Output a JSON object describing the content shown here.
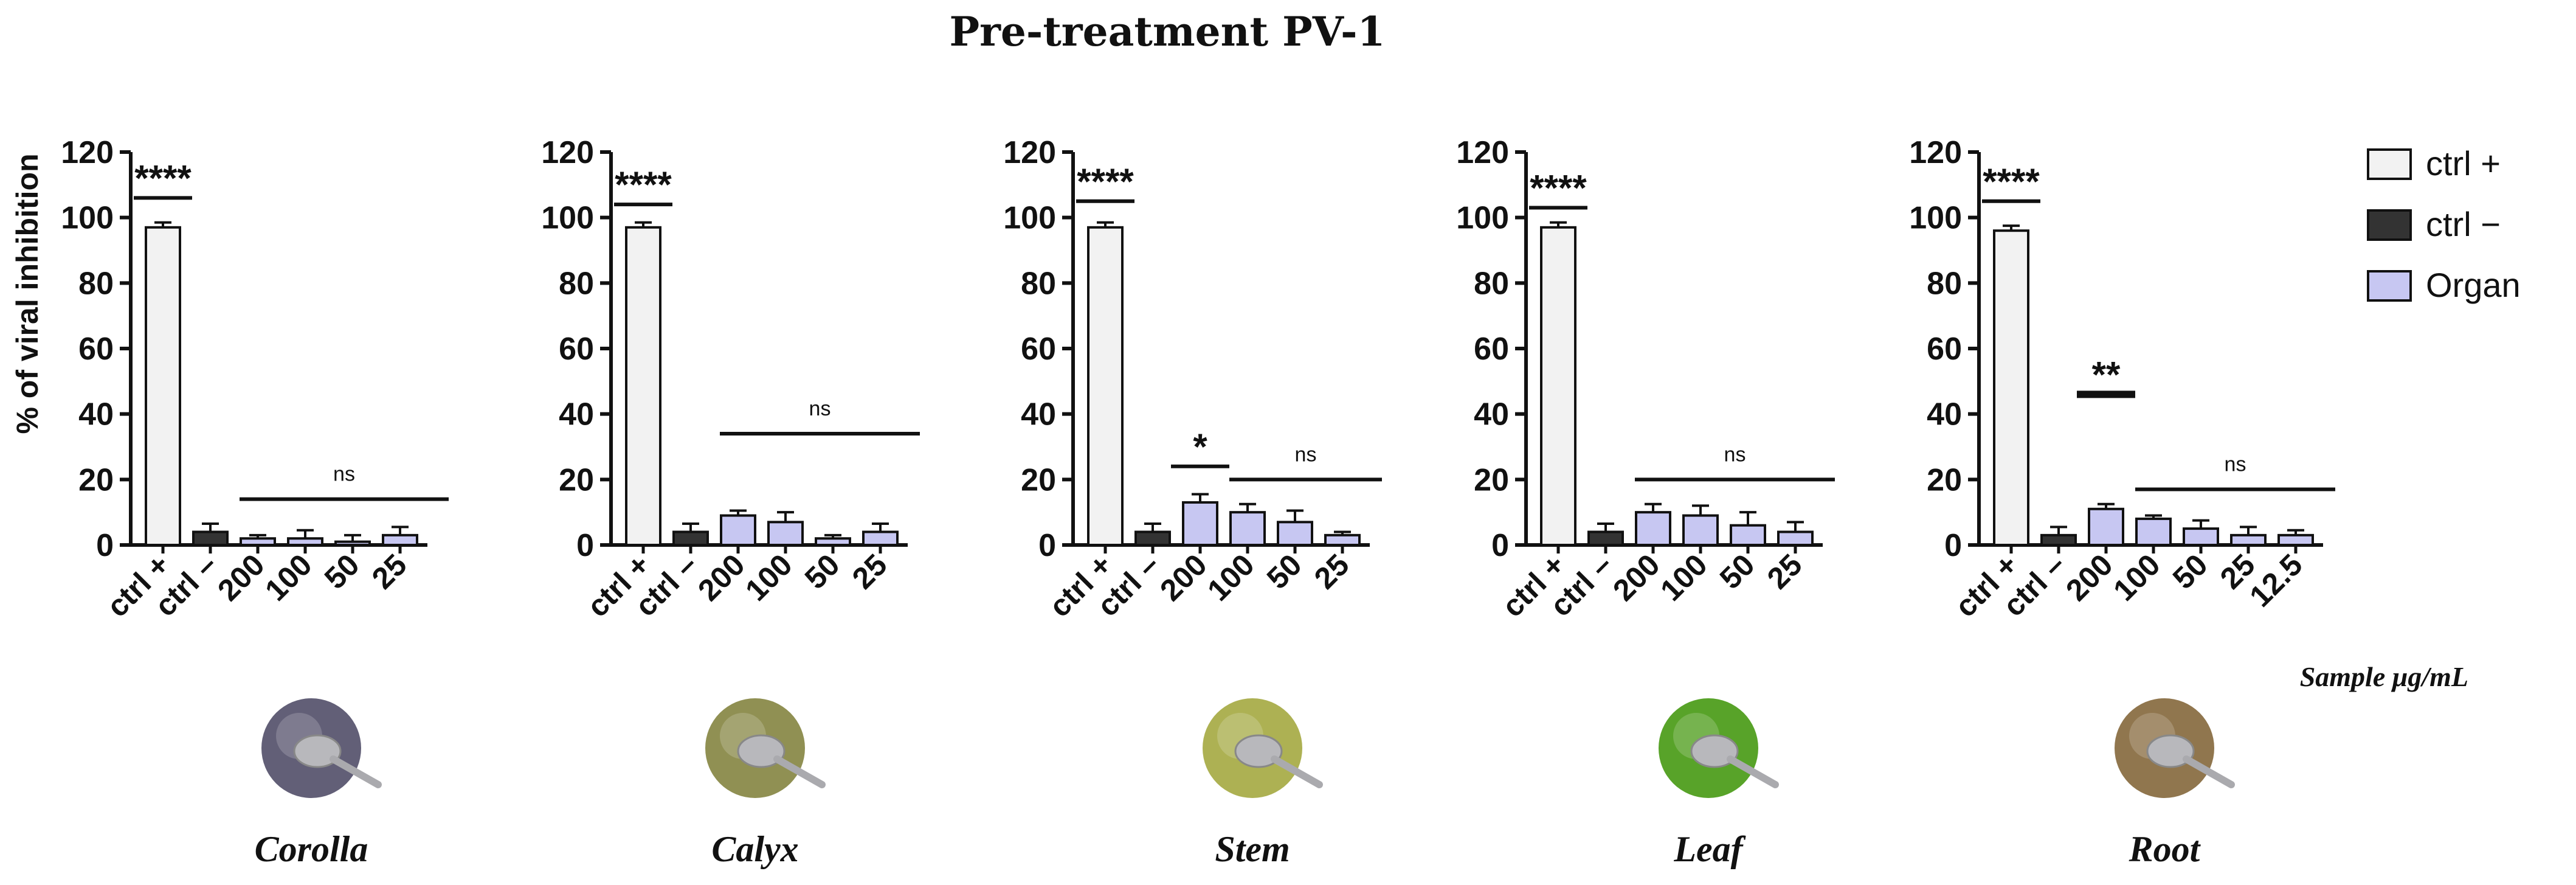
{
  "figure": {
    "title": "Pre-treatment PV-1",
    "ylabel": "% of viral inhibition",
    "xlabel": "Sample μg/mL",
    "legend": [
      {
        "label": "ctrl +",
        "color": "#f2f2f2"
      },
      {
        "label": "ctrl −",
        "color": "#333333"
      },
      {
        "label": "Organ",
        "color": "#c7c7f2"
      }
    ]
  },
  "chart_data": [
    {
      "type": "bar",
      "organ": "Corolla",
      "organ_color": "#5a5670",
      "categories": [
        "ctrl +",
        "ctrl –",
        "200",
        "100",
        "50",
        "25"
      ],
      "values": [
        97,
        4,
        2,
        2,
        1,
        3
      ],
      "errors": [
        1.5,
        2.5,
        1,
        2.5,
        2,
        2.5
      ],
      "kinds": [
        "pos",
        "neg",
        "organ",
        "organ",
        "organ",
        "organ"
      ],
      "ylim": [
        0,
        120
      ],
      "yticks": [
        "0",
        "20",
        "40",
        "60",
        "80",
        "100",
        "120"
      ],
      "annotations": [
        {
          "text": "****",
          "from": 0,
          "to": 0,
          "y": 106
        },
        {
          "text": "ns",
          "from": 2,
          "to": 5,
          "y": 14
        }
      ]
    },
    {
      "type": "bar",
      "organ": "Calyx",
      "organ_color": "#8a8a4a",
      "categories": [
        "ctrl +",
        "ctrl –",
        "200",
        "100",
        "50",
        "25"
      ],
      "values": [
        97,
        4,
        9,
        7,
        2,
        4
      ],
      "errors": [
        1.5,
        2.5,
        1.5,
        3,
        1,
        2.5
      ],
      "kinds": [
        "pos",
        "neg",
        "organ",
        "organ",
        "organ",
        "organ"
      ],
      "ylim": [
        0,
        120
      ],
      "yticks": [
        "0",
        "20",
        "40",
        "60",
        "80",
        "100",
        "120"
      ],
      "annotations": [
        {
          "text": "****",
          "from": 0,
          "to": 0,
          "y": 104
        },
        {
          "text": "ns",
          "from": 2,
          "to": 5,
          "y": 34
        }
      ]
    },
    {
      "type": "bar",
      "organ": "Stem",
      "organ_color": "#a9ad4a",
      "categories": [
        "ctrl +",
        "ctrl –",
        "200",
        "100",
        "50",
        "25"
      ],
      "values": [
        97,
        4,
        13,
        10,
        7,
        3
      ],
      "errors": [
        1.5,
        2.5,
        2.5,
        2.5,
        3.5,
        1
      ],
      "kinds": [
        "pos",
        "neg",
        "organ",
        "organ",
        "organ",
        "organ"
      ],
      "ylim": [
        0,
        120
      ],
      "yticks": [
        "0",
        "20",
        "40",
        "60",
        "80",
        "100",
        "120"
      ],
      "annotations": [
        {
          "text": "****",
          "from": 0,
          "to": 0,
          "y": 105
        },
        {
          "text": "*",
          "from": 2,
          "to": 2,
          "y": 24
        },
        {
          "text": "ns",
          "from": 3,
          "to": 5,
          "y": 20
        }
      ]
    },
    {
      "type": "bar",
      "organ": "Leaf",
      "organ_color": "#4f9e1e",
      "categories": [
        "ctrl +",
        "ctrl –",
        "200",
        "100",
        "50",
        "25"
      ],
      "values": [
        97,
        4,
        10,
        9,
        6,
        4
      ],
      "errors": [
        1.5,
        2.5,
        2.5,
        3,
        4,
        3
      ],
      "kinds": [
        "pos",
        "neg",
        "organ",
        "organ",
        "organ",
        "organ"
      ],
      "ylim": [
        0,
        120
      ],
      "yticks": [
        "0",
        "20",
        "40",
        "60",
        "80",
        "100",
        "120"
      ],
      "annotations": [
        {
          "text": "****",
          "from": 0,
          "to": 0,
          "y": 103
        },
        {
          "text": "ns",
          "from": 2,
          "to": 5,
          "y": 20
        }
      ]
    },
    {
      "type": "bar",
      "organ": "Root",
      "organ_color": "#8a6f45",
      "categories": [
        "ctrl +",
        "ctrl –",
        "200",
        "100",
        "50",
        "25",
        "12.5"
      ],
      "values": [
        96,
        3,
        11,
        8,
        5,
        3,
        3
      ],
      "errors": [
        1.5,
        2.5,
        1.5,
        1,
        2.5,
        2.5,
        1.5
      ],
      "kinds": [
        "pos",
        "neg",
        "organ",
        "organ",
        "organ",
        "organ",
        "organ"
      ],
      "ylim": [
        0,
        120
      ],
      "yticks": [
        "0",
        "20",
        "40",
        "60",
        "80",
        "100",
        "120"
      ],
      "annotations": [
        {
          "text": "****",
          "from": 0,
          "to": 0,
          "y": 105
        },
        {
          "text": "**",
          "from": 2,
          "to": 2,
          "y": 46
        },
        {
          "text": "ns",
          "from": 3,
          "to": 6,
          "y": 17
        }
      ]
    }
  ]
}
